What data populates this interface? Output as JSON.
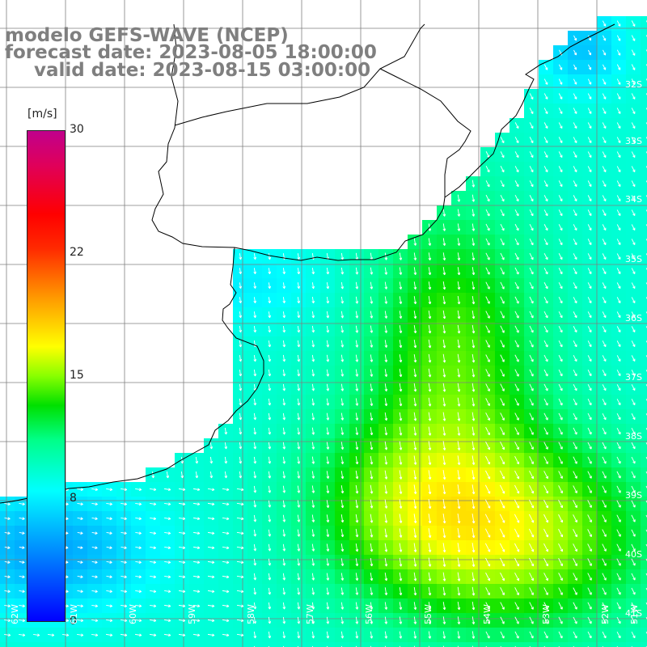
{
  "titles": {
    "model": "modelo GEFS-WAVE (NCEP)",
    "forecast": "forecast date: 2023-08-05 18:00:00",
    "valid": "valid date: 2023-08-15 03:00:00"
  },
  "colorbar": {
    "unit": "[m/s]",
    "ticks": [
      "30",
      "22",
      "15",
      "8",
      "0"
    ],
    "tick_values": [
      30,
      22,
      15,
      8,
      0
    ],
    "range": [
      0,
      30
    ]
  },
  "lat_labels": [
    "32S",
    "33S",
    "34S",
    "35S",
    "36S",
    "37S",
    "38S",
    "39S",
    "40S",
    "41S"
  ],
  "lon_labels": [
    "62W",
    "61W",
    "60W",
    "59W",
    "58W",
    "57W",
    "56W",
    "55W",
    "54W",
    "53W",
    "52W",
    "51W"
  ],
  "colors": {
    "coast": "#000000",
    "grid": "#7f7f7f",
    "arrow": "#ffffff",
    "title": "#7f7f7f"
  }
}
